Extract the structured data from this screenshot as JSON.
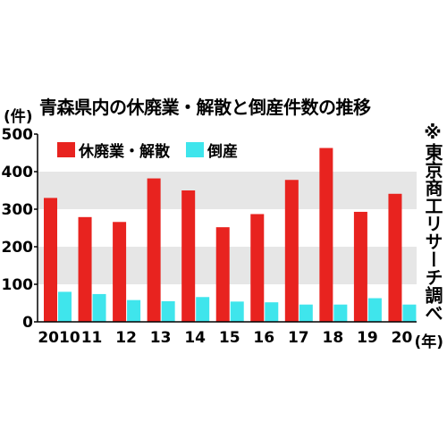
{
  "title": "青森県内の休廃業・解散と倒産件数の推移",
  "unit_label": "(件)",
  "source": "※東京商工リサーチ調べ",
  "x_unit": "(年)",
  "colors": {
    "series1": "#e8231f",
    "series2": "#3fe5ec",
    "band": "#e6e6e6"
  },
  "chart_data": {
    "type": "bar",
    "categories": [
      "2010",
      "11",
      "12",
      "13",
      "14",
      "15",
      "16",
      "17",
      "18",
      "19",
      "20"
    ],
    "series": [
      {
        "name": "休廃業・解散",
        "values": [
          330,
          279,
          266,
          382,
          350,
          252,
          287,
          378,
          463,
          293,
          341
        ]
      },
      {
        "name": "倒産",
        "values": [
          80,
          74,
          58,
          55,
          66,
          54,
          52,
          46,
          46,
          63,
          46
        ]
      }
    ],
    "ylim": [
      0,
      500
    ],
    "yticks": [
      0,
      100,
      200,
      300,
      400,
      500
    ],
    "legend": "top-left",
    "grid": "alternating bands"
  }
}
